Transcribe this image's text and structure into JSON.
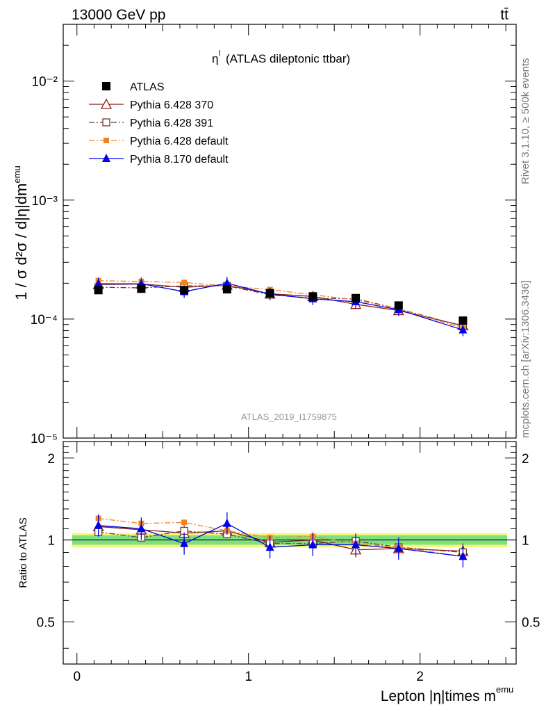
{
  "header": {
    "energy_label": "13000 GeV pp",
    "process_label": "tt̄"
  },
  "side_labels": {
    "rivet": "Rivet 3.1.10, ≥ 500k events",
    "mcplots": "mcplots.cern.ch [arXiv:1306.3436]"
  },
  "watermark": "ATLAS_2019_I1759875",
  "chart_data": [
    {
      "type": "scatter",
      "title": "η^l (ATLAS dileptonic ttbar)",
      "xlabel": "Lepton |η|times m^emu",
      "ylabel": "1 / σ d²σ / d|η|dm^emu",
      "yscale": "log",
      "xlim": [
        -0.08,
        2.56
      ],
      "ylim": [
        1e-05,
        0.03
      ],
      "y_tick_labels": [
        "10⁻⁵",
        "10⁻⁴",
        "10⁻³",
        "10⁻²"
      ],
      "x_tick_labels": [
        "0",
        "1",
        "2"
      ],
      "legend_position": "top-left",
      "x": [
        0.125,
        0.375,
        0.625,
        0.875,
        1.125,
        1.375,
        1.625,
        1.875,
        2.25
      ],
      "series": [
        {
          "name": "ATLAS",
          "color": "#000000",
          "marker": "square-filled",
          "line": "none",
          "values": [
            0.000175,
            0.00018,
            0.000175,
            0.000178,
            0.000165,
            0.000155,
            0.00015,
            0.00013,
            9.7e-05
          ]
        },
        {
          "name": "Pythia 6.428 370",
          "color": "#8b1a1a",
          "marker": "triangle-open",
          "line": "solid",
          "values": [
            0.000195,
            0.000197,
            0.000185,
            0.000193,
            0.000163,
            0.000155,
            0.000133,
            0.000118,
            8.8e-05
          ]
        },
        {
          "name": "Pythia 6.428 391",
          "color": "#6b3a3a",
          "marker": "square-open",
          "line": "dashdot",
          "values": [
            0.000185,
            0.000183,
            0.00019,
            0.00019,
            0.00016,
            0.00015,
            0.000148,
            0.000122,
            8.7e-05
          ]
        },
        {
          "name": "Pythia 6.428 default",
          "color": "#f58220",
          "marker": "square-filled-small",
          "line": "dashdot",
          "values": [
            0.00021,
            0.000207,
            0.000203,
            0.00019,
            0.000177,
            0.00016,
            0.000145,
            0.000122,
            8.4e-05
          ]
        },
        {
          "name": "Pythia 8.170 default",
          "color": "#0000ee",
          "marker": "triangle-filled",
          "line": "solid",
          "values": [
            0.000198,
            0.000198,
            0.00017,
            0.0002,
            0.000162,
            0.000148,
            0.00014,
            0.00012,
            8.1e-05
          ]
        }
      ]
    },
    {
      "type": "scatter",
      "ylabel": "Ratio to ATLAS",
      "ylim": [
        0.35,
        2.3
      ],
      "y_tick_labels": [
        "0.5",
        "1",
        "2"
      ],
      "x": [
        0.125,
        0.375,
        0.625,
        0.875,
        1.125,
        1.375,
        1.625,
        1.875,
        2.25
      ],
      "band": {
        "inner": [
          0.96,
          1.04
        ],
        "outer": [
          0.94,
          1.06
        ],
        "inner_color": "#7fe07f",
        "outer_color": "#f7f77a"
      },
      "series": [
        {
          "name": "Pythia 6.428 370",
          "values": [
            1.12,
            1.09,
            1.06,
            1.08,
            0.98,
            1.0,
            0.92,
            0.93,
            0.91
          ]
        },
        {
          "name": "Pythia 6.428 391",
          "values": [
            1.07,
            1.02,
            1.08,
            1.05,
            0.97,
            0.97,
            0.99,
            0.94,
            0.9
          ]
        },
        {
          "name": "Pythia 6.428 default",
          "values": [
            1.2,
            1.15,
            1.16,
            1.08,
            1.02,
            1.03,
            0.97,
            0.94,
            0.87
          ]
        },
        {
          "name": "Pythia 8.170 default",
          "values": [
            1.13,
            1.1,
            0.97,
            1.15,
            0.94,
            0.96,
            0.96,
            0.93,
            0.87
          ]
        }
      ]
    }
  ]
}
